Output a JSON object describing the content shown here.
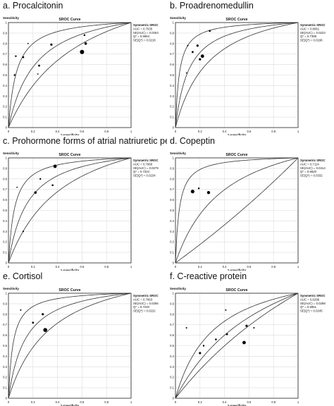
{
  "chart_data": [
    {
      "type": "scatter",
      "panel_title": "a. Procalcitonin",
      "title": "SROC Curve",
      "xlabel": "1-specificity",
      "ylabel": "Sensitivity",
      "xlim": [
        0,
        1
      ],
      "ylim": [
        0,
        1
      ],
      "x_ticks": [
        "0",
        "0.2",
        "0.4",
        "0.6",
        "0.8",
        "1"
      ],
      "y_ticks": [
        "0",
        "0.1",
        "0.2",
        "0.3",
        "0.4",
        "0.5",
        "0.6",
        "0.7",
        "0.8",
        "0.9",
        "1"
      ],
      "grid": true,
      "stats": [
        "Symmetric SROC",
        "AUC = 0.7535",
        "SE(AUC) = 0.0263",
        "Q* = 0.6964",
        "SE(Q*) = 0.0218"
      ],
      "points": [
        {
          "x": 0.05,
          "y": 0.5,
          "size": 1.2
        },
        {
          "x": 0.06,
          "y": 0.68,
          "size": 1.2
        },
        {
          "x": 0.12,
          "y": 0.67,
          "size": 1.4
        },
        {
          "x": 0.16,
          "y": 0.8,
          "size": 0.9
        },
        {
          "x": 0.24,
          "y": 0.51,
          "size": 0.9
        },
        {
          "x": 0.25,
          "y": 0.59,
          "size": 1.4
        },
        {
          "x": 0.35,
          "y": 0.79,
          "size": 1.6
        },
        {
          "x": 0.6,
          "y": 0.72,
          "size": 3.0
        },
        {
          "x": 0.62,
          "y": 0.88,
          "size": 1.3
        },
        {
          "x": 0.63,
          "y": 0.8,
          "size": 1.8
        }
      ],
      "curves": [
        0.62,
        0.7,
        0.8
      ]
    },
    {
      "type": "scatter",
      "panel_title": "b. Proadrenomedullin",
      "title": "SROC Curve",
      "xlabel": "1-specificity",
      "ylabel": "Sensitivity",
      "xlim": [
        0,
        1
      ],
      "ylim": [
        0,
        1
      ],
      "x_ticks": [
        "0",
        "0.2",
        "0.4",
        "0.6",
        "0.8",
        "1"
      ],
      "y_ticks": [
        "0",
        "0.1",
        "0.2",
        "0.3",
        "0.4",
        "0.5",
        "0.6",
        "0.7",
        "0.8",
        "0.9",
        "1"
      ],
      "grid": true,
      "stats": [
        "Symmetric SROC",
        "AUC = 0.8061",
        "SE(AUC) = 0.0223",
        "Q* = 0.7398",
        "SE(Q*) = 0.0196"
      ],
      "points": [
        {
          "x": 0.09,
          "y": 0.52,
          "size": 0.9
        },
        {
          "x": 0.1,
          "y": 0.78,
          "size": 1.0
        },
        {
          "x": 0.14,
          "y": 0.72,
          "size": 1.4
        },
        {
          "x": 0.18,
          "y": 0.78,
          "size": 1.6
        },
        {
          "x": 0.2,
          "y": 0.65,
          "size": 1.6
        },
        {
          "x": 0.22,
          "y": 0.68,
          "size": 2.4
        },
        {
          "x": 0.28,
          "y": 0.92,
          "size": 1.3
        }
      ],
      "curves": [
        0.68,
        0.76,
        0.85
      ]
    },
    {
      "type": "scatter",
      "panel_title": "c. Prohormone forms of atrial natriuretic peptide",
      "title": "SROC Curve",
      "xlabel": "1-specificity",
      "ylabel": "Sensitivity",
      "xlim": [
        0,
        1
      ],
      "ylim": [
        0,
        1
      ],
      "x_ticks": [
        "0",
        "0.2",
        "0.4",
        "0.6",
        "0.8",
        "1"
      ],
      "y_ticks": [
        "0",
        "0.1",
        "0.2",
        "0.3",
        "0.4",
        "0.5",
        "0.6",
        "0.7",
        "0.8",
        "0.9",
        "1"
      ],
      "grid": true,
      "stats": [
        "Symmetric SROC",
        "AUC = 0.7960",
        "SE(AUC) = 0.0279",
        "Q* = 0.7324",
        "SE(Q*) = 0.0234"
      ],
      "points": [
        {
          "x": 0.07,
          "y": 0.72,
          "size": 0.9
        },
        {
          "x": 0.12,
          "y": 0.3,
          "size": 1.1
        },
        {
          "x": 0.22,
          "y": 0.67,
          "size": 1.8
        },
        {
          "x": 0.26,
          "y": 0.8,
          "size": 1.2
        },
        {
          "x": 0.36,
          "y": 0.74,
          "size": 1.3
        },
        {
          "x": 0.38,
          "y": 0.92,
          "size": 2.4
        }
      ],
      "curves": [
        0.64,
        0.73,
        0.82
      ]
    },
    {
      "type": "scatter",
      "panel_title": "d. Copeptin",
      "title": "SROC Curve",
      "xlabel": "1-specificity",
      "ylabel": "Sensitivity",
      "xlim": [
        0,
        1
      ],
      "ylim": [
        0,
        1
      ],
      "x_ticks": [
        "0",
        "0.2",
        "0.4",
        "0.6",
        "0.8",
        "1"
      ],
      "y_ticks": [
        "0",
        "0.1",
        "0.2",
        "0.3",
        "0.4",
        "0.5",
        "0.6",
        "0.7",
        "0.8",
        "0.9",
        "1"
      ],
      "grid": true,
      "stats": [
        "Symmetric SROC",
        "AUC = 0.7114",
        "SE(AUC) = 0.0414",
        "Q* = 0.6620",
        "SE(Q*) = 0.0332"
      ],
      "points": [
        {
          "x": 0.14,
          "y": 0.68,
          "size": 2.6
        },
        {
          "x": 0.19,
          "y": 0.71,
          "size": 1.2
        },
        {
          "x": 0.27,
          "y": 0.67,
          "size": 2.2
        }
      ],
      "curves": [
        0.48,
        0.65,
        0.85
      ]
    },
    {
      "type": "scatter",
      "panel_title": "e. Cortisol",
      "title": "SROC Curve",
      "xlabel": "1-specificity",
      "ylabel": "Sensitivity",
      "xlim": [
        0,
        1
      ],
      "ylim": [
        0,
        1
      ],
      "x_ticks": [
        "0",
        "0.2",
        "0.4",
        "0.6",
        "0.8",
        "1"
      ],
      "y_ticks": [
        "0",
        "0.1",
        "0.2",
        "0.3",
        "0.4",
        "0.5",
        "0.6",
        "0.7",
        "0.8",
        "0.9",
        "1"
      ],
      "grid": true,
      "stats": [
        "Symmetric SROC",
        "AUC = 0.7963",
        "SE(AUC) = 0.0256",
        "Q* = 0.7240",
        "SE(Q*) = 0.0222"
      ],
      "points": [
        {
          "x": 0.1,
          "y": 0.84,
          "size": 1.0
        },
        {
          "x": 0.2,
          "y": 0.72,
          "size": 1.4
        },
        {
          "x": 0.28,
          "y": 0.8,
          "size": 1.6
        },
        {
          "x": 0.3,
          "y": 0.65,
          "size": 2.8
        }
      ],
      "curves": [
        0.66,
        0.74,
        0.84
      ]
    },
    {
      "type": "scatter",
      "panel_title": "f. C-reactive protein",
      "title": "SROC Curve",
      "xlabel": "1-specificity",
      "ylabel": "Sensitivity",
      "xlim": [
        0,
        1
      ],
      "ylim": [
        0,
        1
      ],
      "x_ticks": [
        "0",
        "0.2",
        "0.4",
        "0.6",
        "0.8",
        "1"
      ],
      "y_ticks": [
        "0",
        "0.1",
        "0.2",
        "0.3",
        "0.4",
        "0.5",
        "0.6",
        "0.7",
        "0.8",
        "0.9",
        "1"
      ],
      "grid": true,
      "stats": [
        "Symmetric SROC",
        "AUC = 0.6296",
        "SE(AUC) = 0.0298",
        "Q* = 0.5961",
        "SE(Q*) = 0.0245"
      ],
      "points": [
        {
          "x": 0.09,
          "y": 0.67,
          "size": 1.0
        },
        {
          "x": 0.2,
          "y": 0.43,
          "size": 1.6
        },
        {
          "x": 0.23,
          "y": 0.5,
          "size": 1.2
        },
        {
          "x": 0.33,
          "y": 0.56,
          "size": 1.3
        },
        {
          "x": 0.41,
          "y": 0.84,
          "size": 1.0
        },
        {
          "x": 0.42,
          "y": 0.61,
          "size": 1.4
        },
        {
          "x": 0.56,
          "y": 0.53,
          "size": 2.4
        },
        {
          "x": 0.58,
          "y": 0.69,
          "size": 1.6
        },
        {
          "x": 0.64,
          "y": 0.67,
          "size": 1.0
        }
      ],
      "curves": [
        0.55,
        0.6,
        0.67
      ]
    }
  ]
}
